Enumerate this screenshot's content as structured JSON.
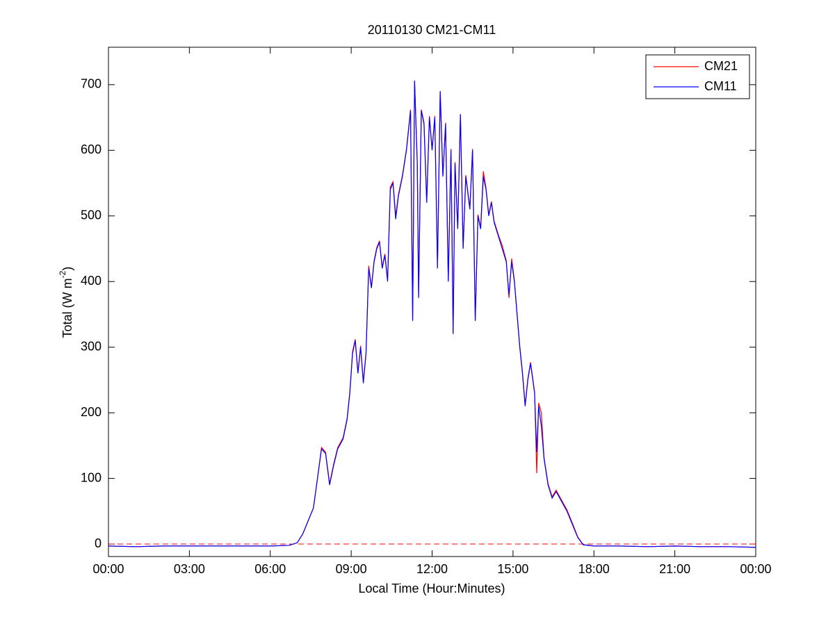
{
  "chart_data": {
    "type": "line",
    "title": "20110130 CM21-CM11",
    "xlabel": "Local Time (Hour:Minutes)",
    "ylabel": [
      "Total (W m",
      "-2",
      ")"
    ],
    "x": [
      0,
      1,
      2,
      3,
      4,
      5,
      6,
      6.7,
      7.0,
      7.2,
      7.4,
      7.6,
      7.75,
      7.9,
      8.05,
      8.2,
      8.35,
      8.5,
      8.7,
      8.85,
      8.95,
      9.05,
      9.15,
      9.25,
      9.35,
      9.45,
      9.55,
      9.65,
      9.75,
      9.85,
      9.95,
      10.05,
      10.15,
      10.25,
      10.35,
      10.45,
      10.55,
      10.65,
      10.75,
      10.9,
      11.05,
      11.2,
      11.28,
      11.35,
      11.45,
      11.5,
      11.6,
      11.7,
      11.8,
      11.9,
      12.0,
      12.1,
      12.2,
      12.3,
      12.4,
      12.5,
      12.6,
      12.7,
      12.78,
      12.85,
      12.95,
      13.05,
      13.15,
      13.25,
      13.4,
      13.5,
      13.6,
      13.7,
      13.8,
      13.9,
      14.0,
      14.1,
      14.2,
      14.3,
      14.45,
      14.6,
      14.75,
      14.85,
      14.95,
      15.05,
      15.15,
      15.25,
      15.35,
      15.45,
      15.55,
      15.65,
      15.8,
      15.88,
      15.95,
      16.05,
      16.15,
      16.3,
      16.45,
      16.6,
      16.8,
      17.0,
      17.2,
      17.4,
      17.6,
      18,
      19,
      20,
      21,
      22,
      23,
      24
    ],
    "series": [
      {
        "name": "CM21",
        "color": "#ff0000",
        "values": [
          -3,
          -4,
          -3,
          -3,
          -3,
          -3,
          -3,
          -2,
          2,
          15,
          35,
          55,
          100,
          147,
          140,
          92,
          122,
          147,
          162,
          192,
          232,
          293,
          312,
          262,
          302,
          248,
          292,
          424,
          392,
          432,
          452,
          462,
          422,
          442,
          402,
          544,
          552,
          500,
          532,
          562,
          602,
          662,
          342,
          706,
          582,
          378,
          662,
          642,
          522,
          652,
          602,
          652,
          422,
          690,
          562,
          642,
          402,
          602,
          322,
          582,
          482,
          655,
          452,
          562,
          512,
          602,
          342,
          502,
          482,
          568,
          542,
          502,
          522,
          492,
          472,
          455,
          432,
          375,
          435,
          402,
          352,
          302,
          262,
          212,
          252,
          277,
          232,
          108,
          215,
          200,
          132,
          92,
          72,
          82,
          67,
          52,
          32,
          11,
          -1,
          -3,
          -3,
          -4,
          -3,
          -4,
          -4,
          -5
        ]
      },
      {
        "name": "CM11",
        "color": "#0000ff",
        "values": [
          -3,
          -4,
          -3,
          -3,
          -3,
          -3,
          -3,
          -2,
          2,
          15,
          35,
          55,
          100,
          145,
          138,
          90,
          120,
          145,
          160,
          190,
          230,
          290,
          310,
          260,
          300,
          245,
          290,
          420,
          390,
          430,
          450,
          460,
          420,
          440,
          400,
          540,
          550,
          495,
          530,
          560,
          600,
          660,
          340,
          706,
          580,
          375,
          660,
          640,
          520,
          650,
          600,
          650,
          420,
          690,
          560,
          640,
          400,
          600,
          320,
          580,
          480,
          655,
          450,
          560,
          510,
          600,
          340,
          500,
          480,
          560,
          540,
          500,
          520,
          490,
          470,
          450,
          430,
          380,
          430,
          400,
          350,
          300,
          260,
          210,
          250,
          275,
          230,
          140,
          210,
          180,
          130,
          90,
          70,
          80,
          65,
          50,
          30,
          10,
          -1,
          -3,
          -3,
          -4,
          -3,
          -4,
          -4,
          -5
        ]
      }
    ],
    "xlim": [
      0,
      24
    ],
    "xticks": [
      {
        "value": 0,
        "label": "00:00"
      },
      {
        "value": 3,
        "label": "03:00"
      },
      {
        "value": 6,
        "label": "06:00"
      },
      {
        "value": 9,
        "label": "09:00"
      },
      {
        "value": 12,
        "label": "12:00"
      },
      {
        "value": 15,
        "label": "15:00"
      },
      {
        "value": 18,
        "label": "18:00"
      },
      {
        "value": 21,
        "label": "21:00"
      },
      {
        "value": 24,
        "label": "00:00"
      }
    ],
    "ylim": [
      -19,
      757
    ],
    "yticks": [
      0,
      100,
      200,
      300,
      400,
      500,
      600,
      700
    ],
    "reference_line": {
      "value": 0,
      "color": "#ff0000"
    },
    "legend": "northeast",
    "grid": false
  }
}
